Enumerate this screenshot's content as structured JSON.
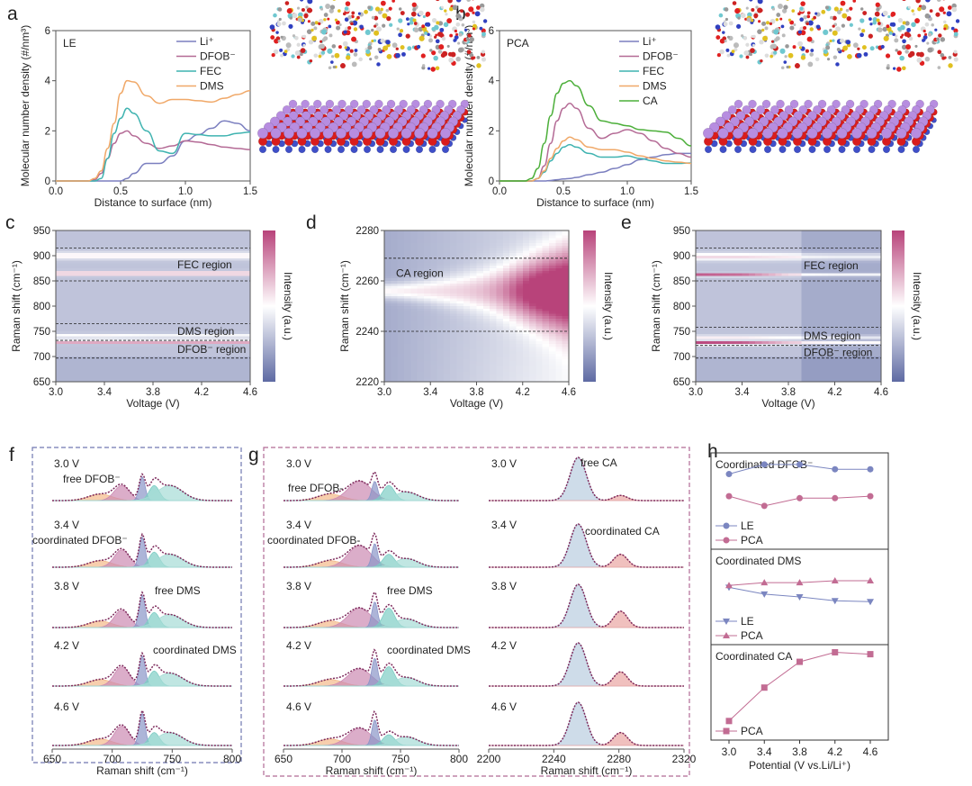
{
  "panel_labels": [
    "a",
    "b",
    "c",
    "d",
    "e",
    "f",
    "g",
    "h"
  ],
  "colormap": {
    "low": "#5e6aa3",
    "mid": "#ffffff",
    "high": "#b8437a"
  },
  "chart_data": [
    {
      "id": "a",
      "type": "line",
      "title": "LE",
      "xlabel": "Distance to surface (nm)",
      "ylabel": "Molecular number density (#/nm³)",
      "xlim": [
        0,
        1.5
      ],
      "ylim": [
        0,
        6
      ],
      "xticks": [
        "0.0",
        "0.5",
        "1.0",
        "1.5"
      ],
      "yticks": [
        "0",
        "2",
        "4",
        "6"
      ],
      "x": [
        0,
        0.2,
        0.25,
        0.3,
        0.35,
        0.4,
        0.45,
        0.5,
        0.55,
        0.6,
        0.7,
        0.8,
        0.9,
        1.0,
        1.1,
        1.2,
        1.3,
        1.4,
        1.5
      ],
      "series": [
        {
          "name": "Li⁺",
          "color": "#7b7fbf",
          "values": [
            0,
            0,
            0,
            0,
            0,
            0,
            0,
            0,
            0.1,
            0.3,
            0.7,
            0.7,
            1.0,
            1.6,
            1.85,
            2.1,
            2.4,
            2.3,
            2.0
          ]
        },
        {
          "name": "DFOB⁻",
          "color": "#b46a95",
          "values": [
            0,
            0,
            0,
            0.05,
            0.3,
            0.9,
            1.5,
            1.9,
            2.0,
            1.8,
            1.5,
            1.3,
            1.4,
            1.6,
            1.55,
            1.45,
            1.35,
            1.3,
            1.25
          ]
        },
        {
          "name": "FEC",
          "color": "#3fb3b0",
          "values": [
            0,
            0,
            0,
            0,
            0.1,
            0.9,
            1.9,
            2.5,
            2.9,
            2.7,
            2.0,
            1.2,
            1.1,
            1.9,
            1.85,
            1.8,
            1.8,
            1.9,
            1.95
          ]
        },
        {
          "name": "DMS",
          "color": "#f0a868",
          "values": [
            0,
            0,
            0,
            0.1,
            0.4,
            1.3,
            2.3,
            3.5,
            4.0,
            3.95,
            3.4,
            3.1,
            3.25,
            3.25,
            3.2,
            3.15,
            3.3,
            3.45,
            3.6
          ]
        }
      ]
    },
    {
      "id": "b",
      "type": "line",
      "title": "PCA",
      "xlabel": "Distance to surface (nm)",
      "ylabel": "Molecular number density (#/nm³)",
      "xlim": [
        0,
        1.5
      ],
      "ylim": [
        0,
        6
      ],
      "xticks": [
        "0.0",
        "0.5",
        "1.0",
        "1.5"
      ],
      "yticks": [
        "0",
        "2",
        "4",
        "6"
      ],
      "x": [
        0,
        0.2,
        0.25,
        0.3,
        0.35,
        0.4,
        0.45,
        0.5,
        0.55,
        0.6,
        0.7,
        0.8,
        0.9,
        1.0,
        1.1,
        1.2,
        1.3,
        1.4,
        1.5
      ],
      "series": [
        {
          "name": "Li⁺",
          "color": "#7b7fbf",
          "values": [
            0,
            0,
            0,
            0,
            0,
            0.02,
            0.05,
            0.08,
            0.1,
            0.14,
            0.25,
            0.35,
            0.5,
            0.65,
            0.85,
            0.95,
            1.05,
            1.1,
            1.1
          ]
        },
        {
          "name": "DFOB⁻",
          "color": "#b46a95",
          "values": [
            0,
            0,
            0,
            0.1,
            0.6,
            1.5,
            2.4,
            2.9,
            3.1,
            2.9,
            2.1,
            1.7,
            1.9,
            2.05,
            1.9,
            1.6,
            1.3,
            1.1,
            0.95
          ]
        },
        {
          "name": "FEC",
          "color": "#3fb3b0",
          "values": [
            0,
            0,
            0,
            0.1,
            0.35,
            0.8,
            1.1,
            1.35,
            1.45,
            1.35,
            1.1,
            0.95,
            0.95,
            1.0,
            0.9,
            0.8,
            0.7,
            0.7,
            0.72
          ]
        },
        {
          "name": "DMS",
          "color": "#f0a868",
          "values": [
            0,
            0,
            0,
            0.1,
            0.4,
            0.9,
            1.3,
            1.6,
            1.75,
            1.65,
            1.35,
            1.25,
            1.25,
            1.15,
            1.0,
            0.9,
            0.8,
            0.75,
            0.7
          ]
        },
        {
          "name": "CA",
          "color": "#4caf3a",
          "values": [
            0,
            0,
            0.1,
            0.5,
            1.5,
            2.6,
            3.5,
            3.9,
            4.0,
            3.8,
            3.0,
            2.4,
            2.3,
            2.2,
            2.05,
            2.0,
            1.95,
            1.7,
            1.4
          ]
        }
      ]
    },
    {
      "id": "c",
      "type": "heatmap",
      "xlabel": "Voltage (V)",
      "ylabel": "Raman shift (cm⁻¹)",
      "colorbar_label": "Intensity (a.u.)",
      "xlim": [
        3.0,
        4.6
      ],
      "ylim": [
        650,
        950
      ],
      "xticks": [
        "3.0",
        "3.4",
        "3.8",
        "4.2",
        "4.6"
      ],
      "yticks": [
        "650",
        "700",
        "750",
        "800",
        "850",
        "900",
        "950"
      ],
      "base": 0.3,
      "bands": [
        {
          "shift": 900,
          "width": 7,
          "amp": [
            0.25,
            0.25,
            0.25,
            0.25,
            0.25
          ]
        },
        {
          "shift": 865,
          "width": 4,
          "amp": [
            0.45,
            0.45,
            0.45,
            0.45,
            0.45
          ]
        },
        {
          "shift": 741,
          "width": 4,
          "amp": [
            0.22,
            0.25,
            0.2,
            0.2,
            0.2
          ]
        },
        {
          "shift": 729,
          "width": 3,
          "amp": [
            0.55,
            0.55,
            0.55,
            0.55,
            0.55
          ]
        }
      ],
      "region_lines": [
        915,
        850,
        765,
        732,
        697
      ],
      "regions": [
        {
          "label": "FEC region",
          "shift": 882
        },
        {
          "label": "DMS region",
          "shift": 750
        },
        {
          "label": "DFOB⁻ region",
          "shift": 714
        }
      ]
    },
    {
      "id": "d",
      "type": "heatmap",
      "xlabel": "Voltage (V)",
      "ylabel": "Raman shift (cm⁻¹)",
      "colorbar_label": "Intensity (a.u.)",
      "xlim": [
        3.0,
        4.6
      ],
      "ylim": [
        2220,
        2280
      ],
      "xticks": [
        "3.0",
        "3.4",
        "3.8",
        "4.2",
        "4.6"
      ],
      "yticks": [
        "2220",
        "2240",
        "2260",
        "2280"
      ],
      "peak_shift": 2256,
      "region_lines": [
        2269,
        2240
      ],
      "regions": [
        {
          "label": "CA region",
          "shift": 2263
        }
      ]
    },
    {
      "id": "e",
      "type": "heatmap",
      "xlabel": "Voltage (V)",
      "ylabel": "Raman shift (cm⁻¹)",
      "colorbar_label": "Intensity (a.u.)",
      "xlim": [
        3.0,
        4.6
      ],
      "ylim": [
        650,
        950
      ],
      "xticks": [
        "3.0",
        "3.4",
        "3.8",
        "4.2",
        "4.6"
      ],
      "yticks": [
        "650",
        "700",
        "750",
        "800",
        "850",
        "900",
        "950"
      ],
      "base": 0.25,
      "bands": [
        {
          "shift": 898,
          "width": 7,
          "amp": [
            0.3,
            0.3,
            0.25,
            0.22,
            0.22
          ]
        },
        {
          "shift": 862,
          "width": 3,
          "amp": [
            0.65,
            0.6,
            0.3,
            0.25,
            0.25
          ]
        },
        {
          "shift": 738,
          "width": 4,
          "amp": [
            0.25,
            0.25,
            0.2,
            0.2,
            0.2
          ]
        },
        {
          "shift": 727,
          "width": 3.5,
          "amp": [
            0.7,
            0.65,
            0.35,
            0.3,
            0.3
          ]
        }
      ],
      "region_lines": [
        915,
        850,
        758,
        722,
        697
      ],
      "regions": [
        {
          "label": "FEC region",
          "shift": 880
        },
        {
          "label": "DMS region",
          "shift": 741
        },
        {
          "label": "DFOB⁻ region",
          "shift": 708
        }
      ]
    },
    {
      "id": "f",
      "type": "area",
      "xlabel": "Raman shift (cm⁻¹)",
      "xlim": [
        650,
        800
      ],
      "xticks": [
        "650",
        "700",
        "750",
        "800"
      ],
      "voltages": [
        "3.0 V",
        "3.4 V",
        "3.8 V",
        "4.2 V",
        "4.6 V"
      ],
      "envelope_color": "#7d2a5c",
      "components": [
        {
          "name": "free DFOB⁻",
          "color": "#f3b98a",
          "center": 690,
          "width": 14,
          "amp": [
            0.15,
            0.15,
            0.15,
            0.15,
            0.15
          ]
        },
        {
          "name": "coordinated DFOB⁻",
          "color": "#cc8ab2",
          "center": 708,
          "width": 9,
          "amp": [
            0.35,
            0.4,
            0.4,
            0.45,
            0.45
          ]
        },
        {
          "name": "free DMS",
          "color": "#8a96c8",
          "center": 725,
          "width": 3.5,
          "amp": [
            0.55,
            0.7,
            0.75,
            0.7,
            0.75
          ]
        },
        {
          "name": "coordinated DMS",
          "color": "#7dcdc4",
          "center": 735,
          "width": 6,
          "amp": [
            0.35,
            0.35,
            0.35,
            0.35,
            0.3
          ]
        },
        {
          "name": "coordinated DMS",
          "color": "#a5dcd5",
          "center": 748,
          "width": 15,
          "amp": [
            0.35,
            0.3,
            0.3,
            0.3,
            0.3
          ]
        }
      ],
      "annotations": [
        "free DFOB⁻",
        "coordinated DFOB⁻",
        "free DMS",
        "coordinated DMS"
      ]
    },
    {
      "id": "g-left",
      "type": "area",
      "xlabel": "Raman shift (cm⁻¹)",
      "xlim": [
        650,
        800
      ],
      "xticks": [
        "650",
        "700",
        "750",
        "800"
      ],
      "voltages": [
        "3.0 V",
        "3.4 V",
        "3.8 V",
        "4.2 V",
        "4.6 V"
      ],
      "envelope_color": "#7d2a5c",
      "components": [
        {
          "name": "free DFOB-",
          "color": "#f3b98a",
          "center": 690,
          "width": 15,
          "amp": [
            0.15,
            0.15,
            0.15,
            0.15,
            0.15
          ]
        },
        {
          "name": "coordinated DFOB-",
          "color": "#cc8ab2",
          "center": 715,
          "width": 14,
          "amp": [
            0.45,
            0.5,
            0.45,
            0.4,
            0.4
          ]
        },
        {
          "name": "free DMS",
          "color": "#8a96c8",
          "center": 728,
          "width": 3.5,
          "amp": [
            0.45,
            0.55,
            0.6,
            0.65,
            0.6
          ]
        },
        {
          "name": "coordinated DMS",
          "color": "#7dcdc4",
          "center": 740,
          "width": 7,
          "amp": [
            0.35,
            0.3,
            0.45,
            0.45,
            0.25
          ]
        },
        {
          "name": "coordinated DMS",
          "color": "#a5dcd5",
          "center": 755,
          "width": 14,
          "amp": [
            0.2,
            0.2,
            0.2,
            0.2,
            0.2
          ]
        }
      ],
      "annotations": [
        "free DFOB-",
        "coordinated DFOB-",
        "free DMS",
        "coordinated DMS"
      ]
    },
    {
      "id": "g-right",
      "type": "area",
      "xlabel": "Raman shift (cm⁻¹)",
      "xlim": [
        2200,
        2320
      ],
      "xticks": [
        "2200",
        "2240",
        "2280",
        "2320"
      ],
      "voltages": [
        "3.0 V",
        "3.4 V",
        "3.8 V",
        "4.2 V",
        "4.6 V"
      ],
      "envelope_color": "#7d2a5c",
      "components": [
        {
          "name": "free CA",
          "color": "#b9cde0",
          "center": 2255,
          "width": 7,
          "amp": [
            1,
            1,
            1,
            1,
            1
          ]
        },
        {
          "name": "coordinated CA",
          "color": "#eaa5a3",
          "center": 2281,
          "width": 6,
          "amp": [
            0.12,
            0.3,
            0.38,
            0.33,
            0.3
          ]
        }
      ],
      "annotations": [
        "free CA",
        "coordinated CA"
      ]
    },
    {
      "id": "h",
      "type": "line",
      "xlabel": "Potential (V vs.Li/Li⁺)",
      "x": [
        3.0,
        3.4,
        3.8,
        4.2,
        4.6
      ],
      "xticks": [
        "3.0",
        "3.4",
        "3.8",
        "4.2",
        "4.6"
      ],
      "subplots": [
        {
          "title": "Coordinated DFOB⁻",
          "series": [
            {
              "name": "LE",
              "color": "#7b86c0",
              "marker": "circle",
              "values": [
                0.78,
                0.88,
                0.88,
                0.83,
                0.83
              ]
            },
            {
              "name": "PCA",
              "color": "#c26c93",
              "marker": "circle",
              "values": [
                0.55,
                0.45,
                0.53,
                0.53,
                0.55
              ]
            }
          ]
        },
        {
          "title": "Coordinated DMS",
          "series": [
            {
              "name": "LE",
              "color": "#7b86c0",
              "marker": "triangle-down",
              "values": [
                0.6,
                0.53,
                0.5,
                0.46,
                0.45
              ]
            },
            {
              "name": "PCA",
              "color": "#c26c93",
              "marker": "triangle-up",
              "values": [
                0.62,
                0.65,
                0.65,
                0.67,
                0.67
              ]
            }
          ]
        },
        {
          "title": "Coordinated CA",
          "series": [
            {
              "name": "PCA",
              "color": "#c26c93",
              "marker": "square",
              "values": [
                0.2,
                0.55,
                0.82,
                0.92,
                0.9
              ]
            }
          ]
        }
      ]
    }
  ]
}
